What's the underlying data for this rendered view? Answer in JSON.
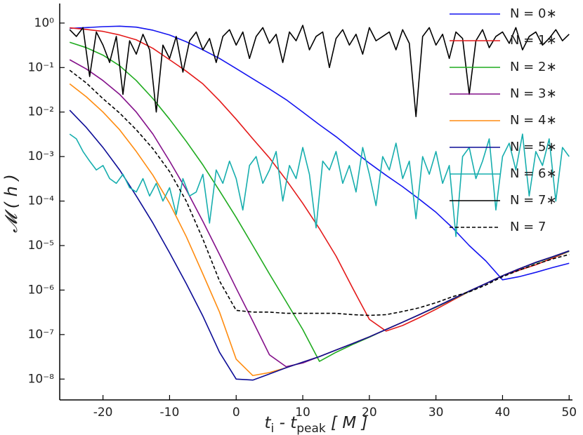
{
  "chart_data": {
    "type": "line",
    "log_y": true,
    "legend": "upper right",
    "ylabel": "𝓜 ( h )",
    "xlabel_parts": [
      "t",
      "i",
      " - t",
      "peak",
      " [ M ]"
    ],
    "xlim": [
      -26.5,
      50.5
    ],
    "ylim": [
      3.4e-09,
      2.75
    ],
    "xticks": [
      -20,
      -10,
      0,
      10,
      20,
      30,
      40,
      50
    ],
    "yticks": [
      {
        "value": 1e-08,
        "label": "10⁻⁸"
      },
      {
        "value": 1e-07,
        "label": "10⁻⁷"
      },
      {
        "value": 1e-06,
        "label": "10⁻⁶"
      },
      {
        "value": 1e-05,
        "label": "10⁻⁵"
      },
      {
        "value": 0.0001,
        "label": "10⁻⁴"
      },
      {
        "value": 0.001,
        "label": "10⁻³"
      },
      {
        "value": 0.01,
        "label": "10⁻²"
      },
      {
        "value": 0.1,
        "label": "10⁻¹"
      },
      {
        "value": 1,
        "label": "10⁰"
      }
    ],
    "x": [
      -25,
      -22.5,
      -20,
      -17.5,
      -15,
      -12.5,
      -10,
      -7.5,
      -5,
      -2.5,
      0,
      2.5,
      5,
      7.5,
      10,
      12.5,
      15,
      17.5,
      20,
      22.5,
      25,
      27.5,
      30,
      32.5,
      35,
      37.5,
      40,
      42.5,
      45,
      47.5,
      50
    ],
    "series": [
      {
        "name": "N = 0∗",
        "color": "#1414f0",
        "values": [
          0.76,
          0.79,
          0.83,
          0.85,
          0.81,
          0.69,
          0.54,
          0.38,
          0.25,
          0.16,
          0.095,
          0.056,
          0.033,
          0.019,
          0.01,
          0.0052,
          0.0028,
          0.0014,
          0.00071,
          0.00038,
          0.00021,
          0.00011,
          5.6e-05,
          2.5e-05,
          1e-05,
          4.5e-06,
          1.7e-06,
          2e-06,
          2.5e-06,
          3.2e-06,
          4e-06
        ]
      },
      {
        "name": "N = 1∗",
        "color": "#e41a1a",
        "values": [
          0.78,
          0.72,
          0.65,
          0.54,
          0.42,
          0.27,
          0.15,
          0.083,
          0.043,
          0.018,
          0.0069,
          0.0025,
          0.00093,
          0.0003,
          8.9e-05,
          2.4e-05,
          5.8e-06,
          1.1e-06,
          2.2e-07,
          1.2e-07,
          1.6e-07,
          2.4e-07,
          3.7e-07,
          5.9e-07,
          9.3e-07,
          1.4e-06,
          2.1e-06,
          2.8e-06,
          3.7e-06,
          5.2e-06,
          7.4e-06
        ]
      },
      {
        "name": "N = 2∗",
        "color": "#1fab1f",
        "values": [
          0.37,
          0.28,
          0.19,
          0.11,
          0.051,
          0.02,
          0.0069,
          0.0022,
          0.00065,
          0.00017,
          4.3e-05,
          1e-05,
          2.3e-06,
          5.5e-07,
          1.3e-07,
          2.5e-08,
          4e-08,
          6e-08,
          8.7e-08,
          1.3e-07,
          1.9e-07,
          2.8e-07,
          4.1e-07,
          6.2e-07,
          9.3e-07,
          1.4e-06,
          2.1e-06,
          3e-06,
          4.1e-06,
          5.5e-06,
          7.4e-06
        ]
      },
      {
        "name": "N = 3∗",
        "color": "#84108a",
        "values": [
          0.15,
          0.093,
          0.051,
          0.025,
          0.01,
          0.0032,
          0.00079,
          0.00018,
          3.5e-05,
          6.3e-06,
          1.1e-06,
          2e-07,
          3.5e-08,
          1.9e-08,
          2.3e-08,
          3.2e-08,
          4.5e-08,
          6.3e-08,
          8.9e-08,
          1.3e-07,
          1.9e-07,
          2.8e-07,
          4.2e-07,
          6.3e-07,
          9.5e-07,
          1.4e-06,
          2.1e-06,
          3e-06,
          4.2e-06,
          5.6e-06,
          7.6e-06
        ]
      },
      {
        "name": "N = 4∗",
        "color": "#ff8c10",
        "values": [
          0.043,
          0.022,
          0.01,
          0.004,
          0.0013,
          0.00038,
          8.9e-05,
          1.6e-05,
          2.3e-06,
          3.2e-07,
          2.8e-08,
          1.2e-08,
          1.4e-08,
          1.8e-08,
          2.4e-08,
          3.2e-08,
          4.5e-08,
          6.3e-08,
          8.9e-08,
          1.3e-07,
          1.9e-07,
          2.8e-07,
          4.2e-07,
          6.3e-07,
          9.5e-07,
          1.4e-06,
          2.1e-06,
          3e-06,
          4.2e-06,
          5.6e-06,
          7.6e-06
        ]
      },
      {
        "name": "N = 5∗",
        "color": "#0c0c96",
        "values": [
          0.011,
          0.0045,
          0.0016,
          0.0005,
          0.00013,
          3.2e-05,
          6.9e-06,
          1.4e-06,
          2.6e-07,
          4e-08,
          1e-08,
          9.5e-09,
          1.3e-08,
          1.8e-08,
          2.4e-08,
          3.2e-08,
          4.5e-08,
          6.3e-08,
          8.9e-08,
          1.3e-07,
          1.9e-07,
          2.8e-07,
          4.2e-07,
          6.3e-07,
          9.5e-07,
          1.4e-06,
          2.1e-06,
          3e-06,
          4.2e-06,
          5.6e-06,
          7.6e-06
        ]
      },
      {
        "name": "N = 6∗",
        "color": "#17aeae",
        "x": [
          -25,
          -24,
          -23,
          -22,
          -21,
          -20,
          -19,
          -18,
          -17,
          -16,
          -15,
          -14,
          -13,
          -12,
          -11,
          -10,
          -9,
          -8,
          -7,
          -6,
          -5,
          -4,
          -3,
          -2,
          -1,
          0,
          1,
          2,
          3,
          4,
          5,
          6,
          7,
          8,
          9,
          10,
          11,
          12,
          13,
          14,
          15,
          16,
          17,
          18,
          19,
          20,
          21,
          22,
          23,
          24,
          25,
          26,
          27,
          28,
          29,
          30,
          31,
          32,
          33,
          34,
          35,
          36,
          37,
          38,
          39,
          40,
          41,
          42,
          43,
          44,
          45,
          46,
          47,
          48,
          49,
          50
        ],
        "values": [
          0.0032,
          0.0025,
          0.0013,
          0.00079,
          0.0005,
          0.00063,
          0.00032,
          0.00025,
          0.0004,
          0.0002,
          0.00016,
          0.00032,
          0.00013,
          0.00025,
          0.0001,
          0.0002,
          5e-05,
          0.00032,
          0.00013,
          0.00016,
          0.0004,
          3.2e-05,
          0.0005,
          0.00025,
          0.00079,
          0.00032,
          6.3e-05,
          0.00063,
          0.001,
          0.00025,
          0.0005,
          0.0013,
          0.0001,
          0.00063,
          0.00032,
          0.0016,
          0.0004,
          2.5e-05,
          0.00079,
          0.0005,
          0.0013,
          0.00025,
          0.00063,
          0.00016,
          0.0016,
          0.0004,
          7.9e-05,
          0.001,
          0.0005,
          0.002,
          0.00032,
          0.00079,
          4e-05,
          0.001,
          0.0004,
          0.0013,
          0.00025,
          0.00063,
          1.6e-05,
          0.001,
          0.0016,
          0.00032,
          0.00079,
          0.0025,
          6.3e-05,
          0.001,
          0.002,
          0.0005,
          0.0032,
          0.00013,
          0.0013,
          0.00063,
          0.0025,
          0.0001,
          0.0016,
          0.001
        ]
      },
      {
        "name": "N = 7∗",
        "color": "#000000",
        "x": [
          -25,
          -24,
          -23,
          -22,
          -21,
          -20,
          -19,
          -18,
          -17,
          -16,
          -15,
          -14,
          -13,
          -12,
          -11,
          -10,
          -9,
          -8,
          -7,
          -6,
          -5,
          -4,
          -3,
          -2,
          -1,
          0,
          1,
          2,
          3,
          4,
          5,
          6,
          7,
          8,
          9,
          10,
          11,
          12,
          13,
          14,
          15,
          16,
          17,
          18,
          19,
          20,
          21,
          22,
          23,
          24,
          25,
          26,
          27,
          28,
          29,
          30,
          31,
          32,
          33,
          34,
          35,
          36,
          37,
          38,
          39,
          40,
          41,
          42,
          43,
          44,
          45,
          46,
          47,
          48,
          49,
          50
        ],
        "values": [
          0.71,
          0.5,
          0.79,
          0.063,
          0.63,
          0.32,
          0.13,
          0.5,
          0.025,
          0.4,
          0.2,
          0.56,
          0.25,
          0.01,
          0.32,
          0.16,
          0.5,
          0.079,
          0.4,
          0.63,
          0.25,
          0.45,
          0.13,
          0.5,
          0.71,
          0.32,
          0.63,
          0.16,
          0.5,
          0.79,
          0.35,
          0.56,
          0.13,
          0.63,
          0.4,
          0.89,
          0.25,
          0.5,
          0.63,
          0.1,
          0.45,
          0.71,
          0.32,
          0.56,
          0.2,
          0.79,
          0.4,
          0.5,
          0.63,
          0.25,
          0.71,
          0.35,
          0.0079,
          0.5,
          0.79,
          0.32,
          0.56,
          0.16,
          0.63,
          0.45,
          0.025,
          0.4,
          0.71,
          0.28,
          0.5,
          0.63,
          0.35,
          0.79,
          0.25,
          0.5,
          0.63,
          0.32,
          0.45,
          0.71,
          0.4,
          0.56
        ]
      },
      {
        "name": "N = 7",
        "color": "#000000",
        "dashed": true,
        "values": [
          0.087,
          0.045,
          0.02,
          0.0095,
          0.004,
          0.0015,
          0.00046,
          0.0001,
          1.4e-05,
          1.6e-06,
          3.5e-07,
          3.2e-07,
          3.2e-07,
          3e-07,
          3e-07,
          3e-07,
          3e-07,
          2.8e-07,
          2.7e-07,
          2.8e-07,
          3.3e-07,
          4e-07,
          5.2e-07,
          7.1e-07,
          9.1e-07,
          1.3e-06,
          2e-06,
          2.8e-06,
          3.8e-06,
          5e-06,
          6.3e-06
        ]
      }
    ]
  }
}
